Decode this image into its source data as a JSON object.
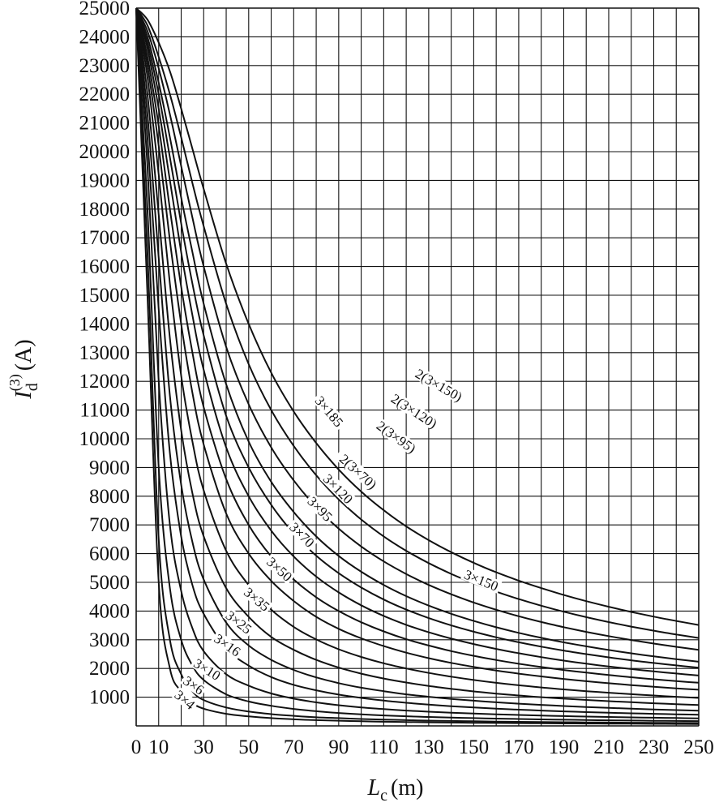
{
  "chart_data": {
    "type": "line",
    "title": "",
    "xlabel": {
      "main": "L",
      "sub": "c",
      "unit": "(m)"
    },
    "ylabel": {
      "main": "I",
      "sub": "d",
      "sup": "(3)",
      "unit": "(A)"
    },
    "xlim": [
      0,
      250
    ],
    "ylim": [
      0,
      25000
    ],
    "grid": true,
    "x_ticks": [
      0,
      10,
      30,
      50,
      70,
      90,
      110,
      130,
      150,
      170,
      190,
      210,
      230,
      250
    ],
    "x_tick_labels": [
      "0",
      "10",
      "30",
      "50",
      "70",
      "90",
      "110",
      "130",
      "150",
      "170",
      "190",
      "210",
      "230",
      "250"
    ],
    "y_ticks": [
      1000,
      2000,
      3000,
      4000,
      5000,
      6000,
      7000,
      8000,
      9000,
      10000,
      11000,
      12000,
      13000,
      14000,
      15000,
      16000,
      17000,
      18000,
      19000,
      20000,
      21000,
      22000,
      23000,
      24000,
      25000
    ],
    "y_tick_labels": [
      "1000",
      "2000",
      "3000",
      "4000",
      "5000",
      "6000",
      "7000",
      "8000",
      "9000",
      "10000",
      "11000",
      "12000",
      "13000",
      "14000",
      "15000",
      "16000",
      "17000",
      "18000",
      "19000",
      "20000",
      "21000",
      "22000",
      "23000",
      "24000",
      "25000"
    ],
    "x": [
      0,
      5,
      10,
      15,
      20,
      25,
      30,
      40,
      50,
      60,
      70,
      80,
      90,
      100,
      110,
      120,
      130,
      140,
      150,
      160,
      170,
      180,
      190,
      200,
      210,
      220,
      230,
      240,
      250
    ],
    "series": [
      {
        "name": "3×4",
        "values": [
          25000,
          15000,
          5000,
          2000,
          1200,
          800,
          600,
          420,
          330,
          270,
          230,
          200,
          180,
          160,
          145,
          135,
          125,
          115,
          108,
          102,
          96,
          91,
          86,
          82,
          78,
          75,
          72,
          69,
          66
        ]
      },
      {
        "name": "3×6",
        "values": [
          25000,
          16500,
          6500,
          3000,
          1800,
          1200,
          900,
          640,
          500,
          410,
          350,
          300,
          270,
          240,
          220,
          200,
          185,
          172,
          160,
          150,
          142,
          135,
          128,
          122,
          116,
          111,
          107,
          103,
          99
        ]
      },
      {
        "name": "3×10",
        "values": [
          25000,
          18000,
          9000,
          4800,
          3000,
          2100,
          1600,
          1100,
          850,
          700,
          590,
          510,
          450,
          400,
          365,
          335,
          310,
          288,
          270,
          254,
          240,
          227,
          215,
          205,
          195,
          187,
          179,
          172,
          166
        ]
      },
      {
        "name": "3×16",
        "values": [
          25000,
          19500,
          12000,
          7000,
          4700,
          3400,
          2600,
          1800,
          1400,
          1130,
          950,
          820,
          720,
          645,
          585,
          535,
          495,
          460,
          430,
          405,
          380,
          360,
          342,
          325,
          310,
          297,
          284,
          273,
          262
        ]
      },
      {
        "name": "3×25",
        "values": [
          25000,
          20500,
          14500,
          9500,
          6600,
          4900,
          3900,
          2700,
          2100,
          1700,
          1430,
          1240,
          1090,
          975,
          880,
          805,
          740,
          685,
          640,
          600,
          565,
          535,
          505,
          480,
          458,
          438,
          420,
          403,
          388
        ]
      },
      {
        "name": "3×35",
        "values": [
          25000,
          21300,
          16300,
          11500,
          8400,
          6400,
          5100,
          3600,
          2800,
          2300,
          1950,
          1690,
          1490,
          1330,
          1210,
          1100,
          1015,
          940,
          878,
          822,
          774,
          731,
          693,
          659,
          628,
          600,
          574,
          551,
          530
        ]
      },
      {
        "name": "3×50",
        "values": [
          25000,
          22000,
          17800,
          13500,
          10300,
          8100,
          6600,
          4800,
          3800,
          3100,
          2650,
          2300,
          2030,
          1820,
          1650,
          1510,
          1390,
          1290,
          1200,
          1125,
          1060,
          1000,
          950,
          905,
          862,
          824,
          789,
          757,
          727
        ]
      },
      {
        "name": "3×70",
        "values": [
          25000,
          22600,
          19200,
          15400,
          12200,
          9900,
          8200,
          6100,
          4900,
          4050,
          3450,
          3010,
          2670,
          2400,
          2180,
          2000,
          1845,
          1715,
          1600,
          1500,
          1415,
          1340,
          1270,
          1210,
          1155,
          1105,
          1058,
          1015,
          975
        ]
      },
      {
        "name": "3×95",
        "values": [
          25000,
          23000,
          20200,
          16900,
          14000,
          11600,
          9800,
          7400,
          6000,
          5050,
          4350,
          3800,
          3380,
          3050,
          2780,
          2550,
          2360,
          2195,
          2055,
          1930,
          1820,
          1722,
          1635,
          1557,
          1486,
          1422,
          1363,
          1309,
          1259
        ]
      },
      {
        "name": "3×120",
        "values": [
          25000,
          23300,
          20900,
          18000,
          15300,
          13000,
          11100,
          8600,
          7000,
          5900,
          5100,
          4480,
          4000,
          3610,
          3290,
          3020,
          2800,
          2605,
          2440,
          2295,
          2165,
          2050,
          1947,
          1855,
          1771,
          1695,
          1625,
          1561,
          1502
        ]
      },
      {
        "name": "3×150",
        "values": [
          25000,
          23600,
          21500,
          19000,
          16500,
          14300,
          12400,
          9700,
          8000,
          6800,
          5900,
          5200,
          4650,
          4200,
          3830,
          3520,
          3260,
          3040,
          2850,
          2680,
          2530,
          2395,
          2275,
          2167,
          2069,
          1980,
          1899,
          1824,
          1755
        ]
      },
      {
        "name": "3×185",
        "values": [
          25000,
          23800,
          22000,
          19800,
          17500,
          15400,
          13600,
          10800,
          9000,
          7700,
          6700,
          5930,
          5320,
          4820,
          4400,
          4050,
          3755,
          3500,
          3280,
          3085,
          2913,
          2760,
          2623,
          2499,
          2387,
          2285,
          2192,
          2106,
          2027
        ]
      },
      {
        "name": "2(3×70)",
        "values": [
          25000,
          24000,
          22400,
          20500,
          18400,
          16500,
          14700,
          11900,
          9900,
          8500,
          7450,
          6600,
          5920,
          5370,
          4910,
          4520,
          4190,
          3905,
          3655,
          3435,
          3240,
          3067,
          2911,
          2771,
          2644,
          2528,
          2422,
          2324,
          2234
        ]
      },
      {
        "name": "2(3×95)",
        "values": [
          25000,
          24200,
          22900,
          21300,
          19500,
          17700,
          16000,
          13200,
          11200,
          9700,
          8550,
          7620,
          6870,
          6250,
          5730,
          5290,
          4910,
          4585,
          4298,
          4045,
          3820,
          3619,
          3438,
          3275,
          3127,
          2992,
          2868,
          2754,
          2649
        ]
      },
      {
        "name": "2(3×120)",
        "values": [
          25000,
          24400,
          23300,
          22000,
          20500,
          18900,
          17400,
          14700,
          12600,
          11000,
          9750,
          8730,
          7890,
          7190,
          6600,
          6100,
          5670,
          5295,
          4967,
          4677,
          4418,
          4186,
          3977,
          3788,
          3616,
          3459,
          3315,
          3183,
          3061
        ]
      },
      {
        "name": "2(3×150)",
        "values": [
          25000,
          24600,
          23800,
          22800,
          21500,
          20100,
          18700,
          16100,
          14000,
          12300,
          10950,
          9850,
          8930,
          8160,
          7510,
          6950,
          6470,
          6050,
          5680,
          5350,
          5060,
          4800,
          4560,
          4345,
          4150,
          3970,
          3805,
          3655,
          3515
        ]
      }
    ],
    "curve_labels": [
      {
        "text": "3×4",
        "x": 21,
        "y": 850,
        "angle": 40
      },
      {
        "text": "3×6",
        "x": 25,
        "y": 1350,
        "angle": 35
      },
      {
        "text": "3×10",
        "x": 31,
        "y": 1900,
        "angle": 32
      },
      {
        "text": "3×16",
        "x": 40,
        "y": 2750,
        "angle": 35
      },
      {
        "text": "3×25",
        "x": 45,
        "y": 3550,
        "angle": 38
      },
      {
        "text": "3×35",
        "x": 53,
        "y": 4350,
        "angle": 40
      },
      {
        "text": "3×50",
        "x": 63,
        "y": 5400,
        "angle": 42
      },
      {
        "text": "3×70",
        "x": 73,
        "y": 6600,
        "angle": 45
      },
      {
        "text": "3×95",
        "x": 81,
        "y": 7500,
        "angle": 45
      },
      {
        "text": "3×120",
        "x": 89,
        "y": 8200,
        "angle": 45
      },
      {
        "text": "3×185",
        "x": 85,
        "y": 10900,
        "angle": 50
      },
      {
        "text": "2(3×70)",
        "x": 98,
        "y": 8800,
        "angle": 42
      },
      {
        "text": "2(3×95)",
        "x": 115,
        "y": 10000,
        "angle": 36
      },
      {
        "text": "2(3×120)",
        "x": 123,
        "y": 10900,
        "angle": 33
      },
      {
        "text": "2(3×150)",
        "x": 134,
        "y": 11800,
        "angle": 30
      },
      {
        "text": "3×150",
        "x": 153,
        "y": 5000,
        "angle": 22
      }
    ]
  }
}
